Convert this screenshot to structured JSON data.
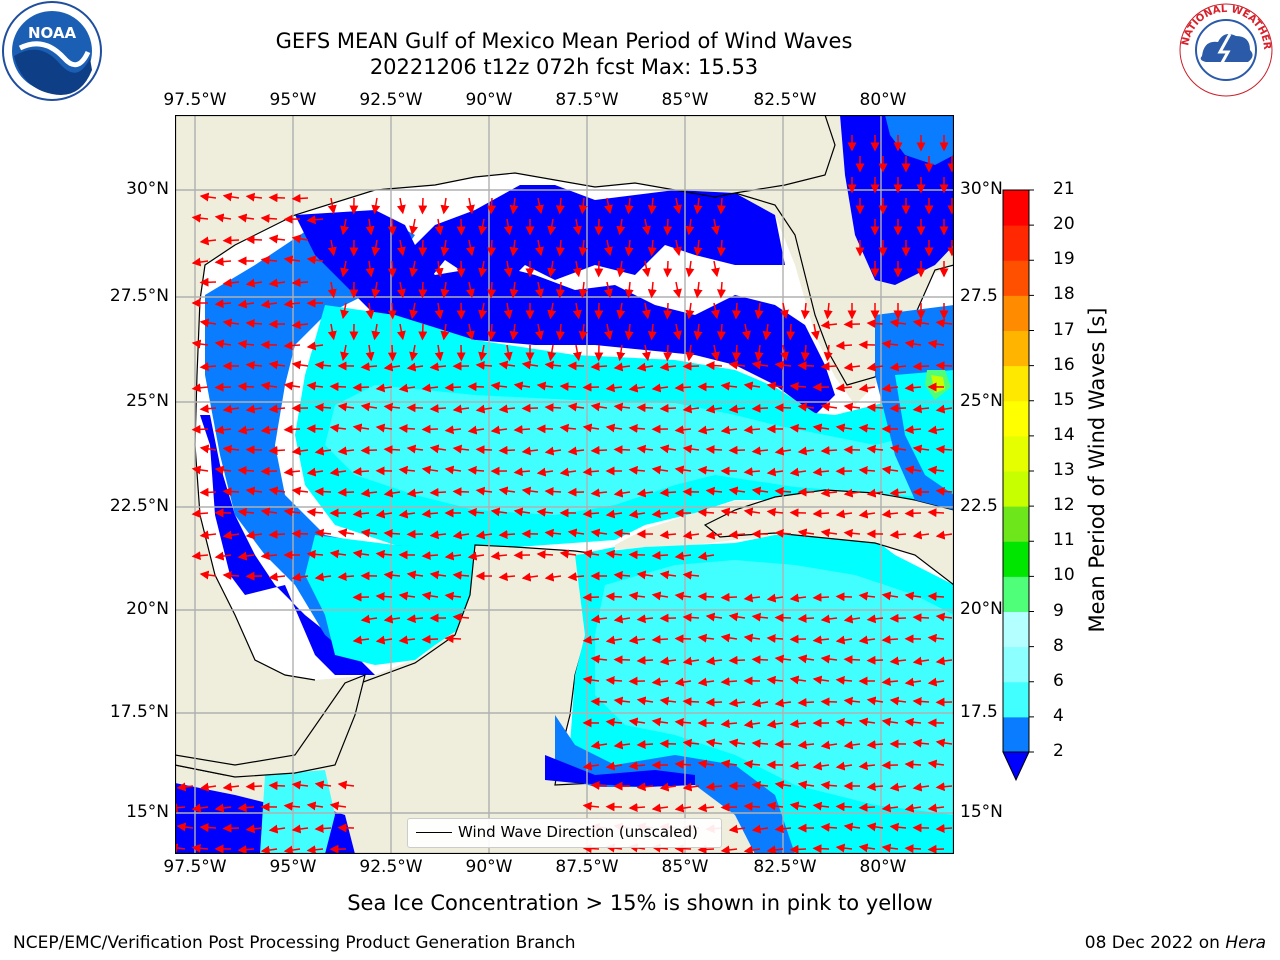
{
  "header": {
    "title_line1": "GEFS MEAN Gulf of Mexico Mean Period of Wind Waves",
    "title_line2": "20221206 t12z 072h fcst   Max: 15.53"
  },
  "logos": {
    "noaa": {
      "text": "NOAA",
      "icon": "noaa-logo"
    },
    "nws": {
      "text": "NATIONAL WEATHER SERVICE",
      "icon": "nws-logo"
    }
  },
  "map": {
    "lon_ticks_top": [
      "97.5°W",
      "95°W",
      "92.5°W",
      "90°W",
      "87.5°W",
      "85°W",
      "82.5°W",
      "80°W"
    ],
    "lon_ticks_bottom": [
      "97.5°W",
      "95°W",
      "92.5°W",
      "90°W",
      "87.5°W",
      "85°W",
      "82.5°W",
      "80°W"
    ],
    "lat_ticks_left": [
      "30°N",
      "27.5°N",
      "25°N",
      "22.5°N",
      "20°N",
      "17.5°N",
      "15°N"
    ],
    "lat_ticks_right": [
      "30°N",
      "27.5",
      "25°N",
      "22.5",
      "20°N",
      "17.5",
      "15°N"
    ],
    "extent": {
      "lon": [
        -98,
        -78.2
      ],
      "lat": [
        14,
        31.6
      ]
    },
    "colors": {
      "land": "#efeedc",
      "grid": "#b0b0b0",
      "arrow": "#ff0000",
      "coast": "#000000"
    },
    "legend": {
      "label": "Wind Wave Direction (unscaled)"
    }
  },
  "colorbar": {
    "label": "Mean Period of Wind Waves [s]",
    "ticks": [
      "2",
      "4",
      "6",
      "8",
      "9",
      "10",
      "11",
      "12",
      "13",
      "14",
      "15",
      "16",
      "17",
      "18",
      "19",
      "20",
      "21"
    ],
    "colors": [
      "#0a7cff",
      "#00ffff",
      "#42ffff",
      "#8cffff",
      "#b4ffff",
      "#4fff7a",
      "#00e600",
      "#6ee61c",
      "#c8ff00",
      "#e6ff00",
      "#ffff00",
      "#ffe800",
      "#ffb400",
      "#ff8c00",
      "#ff5000",
      "#ff2800",
      "#ff0000"
    ],
    "under_color": "#0000ff"
  },
  "notes": {
    "sea_ice": "Sea Ice Concentration > 15% is shown in pink to yellow"
  },
  "footer": {
    "left": "NCEP/EMC/Verification Post Processing Product Generation Branch",
    "date": "08 Dec 2022 on",
    "host": "Hera"
  }
}
